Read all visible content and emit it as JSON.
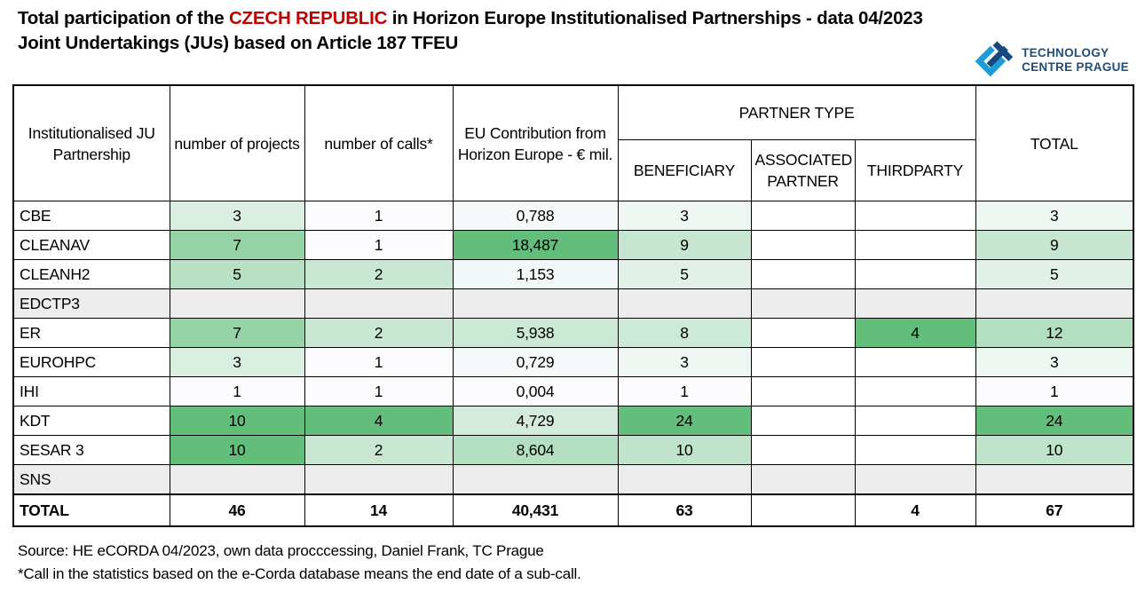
{
  "title": {
    "text_before": "Total participation of the ",
    "highlight": "CZECH REPUBLIC",
    "text_after": " in Horizon Europe Institutionalised Partnerships - data 04/2023",
    "line2": "Joint Undertakings (JUs) based on Article 187 TFEU",
    "highlight_color": "#C00000"
  },
  "logo": {
    "line1": "TECHNOLOGY",
    "line2": "CENTRE PRAGUE",
    "light_blue": "#1E9CD7",
    "dark_blue": "#17497C",
    "text_color": "#1F4E79"
  },
  "table": {
    "headers": {
      "partnership": "Institutionalised JU Partnership",
      "projects": "number of projects",
      "calls": "number of calls*",
      "eu_contribution": "EU Contribution from Horizon Europe - € mil.",
      "partner_type": "PARTNER TYPE",
      "beneficiary": "BENEFICIARY",
      "associated_partner": "ASSOCIATED PARTNER",
      "thirdparty": "THIRDPARTY",
      "total": "TOTAL"
    },
    "heat_min_color": "#FCFCFF",
    "heat_max_color": "#63BE7B",
    "empty_row_color": "#EDEDED",
    "rows": [
      {
        "label": "CBE",
        "cells": [
          {
            "t": "3",
            "bg": "#DAEEE2"
          },
          {
            "t": "1",
            "bg": "#FCFCFF"
          },
          {
            "t": "0,788",
            "bg": "#F5F9F9"
          },
          {
            "t": "3",
            "bg": "#EFF7F3"
          },
          {},
          {},
          {
            "t": "3",
            "bg": "#EFF7F3"
          }
        ]
      },
      {
        "label": "CLEANAV",
        "cells": [
          {
            "t": "7",
            "bg": "#96D3A7"
          },
          {
            "t": "1",
            "bg": "#FCFCFF"
          },
          {
            "t": "18,487",
            "bg": "#63BE7B"
          },
          {
            "t": "9",
            "bg": "#C7E6D1"
          },
          {},
          {},
          {
            "t": "9",
            "bg": "#C7E6D1"
          }
        ]
      },
      {
        "label": "CLEANH2",
        "cells": [
          {
            "t": "5",
            "bg": "#B8E0C4"
          },
          {
            "t": "2",
            "bg": "#C9E7D3"
          },
          {
            "t": "1,153",
            "bg": "#F2F8F7"
          },
          {
            "t": "5",
            "bg": "#E1F1E8"
          },
          {},
          {},
          {
            "t": "5",
            "bg": "#E1F1E8"
          }
        ]
      },
      {
        "label": "EDCTP3",
        "bg": "#EDEDED",
        "cells": [
          {},
          {},
          {},
          {},
          {},
          {},
          {}
        ]
      },
      {
        "label": "ER",
        "cells": [
          {
            "t": "7",
            "bg": "#96D3A7"
          },
          {
            "t": "2",
            "bg": "#C9E7D3"
          },
          {
            "t": "5,938",
            "bg": "#CBE8D4"
          },
          {
            "t": "8",
            "bg": "#CDE9D7"
          },
          {},
          {
            "t": "4",
            "bg": "#63BE7B"
          },
          {
            "t": "12",
            "bg": "#B3DEC0"
          }
        ]
      },
      {
        "label": "EUROHPC",
        "cells": [
          {
            "t": "3",
            "bg": "#DAEEE2"
          },
          {
            "t": "1",
            "bg": "#FCFCFF"
          },
          {
            "t": "0,729",
            "bg": "#F6F9FA"
          },
          {
            "t": "3",
            "bg": "#EFF7F3"
          },
          {},
          {},
          {
            "t": "3",
            "bg": "#EFF7F3"
          }
        ]
      },
      {
        "label": "IHI",
        "cells": [
          {
            "t": "1",
            "bg": "#FCFCFF"
          },
          {
            "t": "1",
            "bg": "#FCFCFF"
          },
          {
            "t": "0,004",
            "bg": "#FCFCFF"
          },
          {
            "t": "1",
            "bg": "#FCFCFF"
          },
          {},
          {},
          {
            "t": "1",
            "bg": "#FCFCFF"
          }
        ]
      },
      {
        "label": "KDT",
        "cells": [
          {
            "t": "10",
            "bg": "#63BE7B"
          },
          {
            "t": "4",
            "bg": "#63BE7B"
          },
          {
            "t": "4,729",
            "bg": "#D5ECDD"
          },
          {
            "t": "24",
            "bg": "#63BE7B"
          },
          {},
          {},
          {
            "t": "24",
            "bg": "#63BE7B"
          }
        ]
      },
      {
        "label": "SESAR 3",
        "cells": [
          {
            "t": "10",
            "bg": "#63BE7B"
          },
          {
            "t": "2",
            "bg": "#C9E7D3"
          },
          {
            "t": "8,604",
            "bg": "#B5DFC2"
          },
          {
            "t": "10",
            "bg": "#C0E4CB"
          },
          {},
          {},
          {
            "t": "10",
            "bg": "#C0E4CB"
          }
        ]
      },
      {
        "label": "SNS",
        "bg": "#EDEDED",
        "cells": [
          {},
          {},
          {},
          {},
          {},
          {},
          {}
        ]
      },
      {
        "label": "TOTAL",
        "bold": true,
        "cells": [
          {
            "t": "46"
          },
          {
            "t": "14"
          },
          {
            "t": "40,431"
          },
          {
            "t": "63"
          },
          {},
          {
            "t": "4"
          },
          {
            "t": "67"
          }
        ]
      }
    ]
  },
  "footnotes": {
    "source": "Source: HE eCORDA 04/2023, own data procccessing, Daniel Frank, TC Prague",
    "call_note": "*Call in the statistics based on the e-Corda database means the end date of a sub-call."
  },
  "chart_data": {
    "type": "table",
    "columns": [
      "Institutionalised JU Partnership",
      "number of projects",
      "number of calls*",
      "EU Contribution from Horizon Europe - € mil.",
      "BENEFICIARY",
      "ASSOCIATED PARTNER",
      "THIRDPARTY",
      "TOTAL"
    ],
    "rows": [
      [
        "CBE",
        3,
        1,
        "0,788",
        3,
        null,
        null,
        3
      ],
      [
        "CLEANAV",
        7,
        1,
        "18,487",
        9,
        null,
        null,
        9
      ],
      [
        "CLEANH2",
        5,
        2,
        "1,153",
        5,
        null,
        null,
        5
      ],
      [
        "EDCTP3",
        null,
        null,
        null,
        null,
        null,
        null,
        null
      ],
      [
        "ER",
        7,
        2,
        "5,938",
        8,
        null,
        4,
        12
      ],
      [
        "EUROHPC",
        3,
        1,
        "0,729",
        3,
        null,
        null,
        3
      ],
      [
        "IHI",
        1,
        1,
        "0,004",
        1,
        null,
        null,
        1
      ],
      [
        "KDT",
        10,
        4,
        "4,729",
        24,
        null,
        null,
        24
      ],
      [
        "SESAR 3",
        10,
        2,
        "8,604",
        10,
        null,
        null,
        10
      ],
      [
        "SNS",
        null,
        null,
        null,
        null,
        null,
        null,
        null
      ],
      [
        "TOTAL",
        46,
        14,
        "40,431",
        63,
        null,
        4,
        67
      ]
    ],
    "notes": "Green heatmap conditional formatting per column, min #FCFCFF to max #63BE7B; EDCTP3 and SNS rows empty (gray #EDEDED)"
  }
}
